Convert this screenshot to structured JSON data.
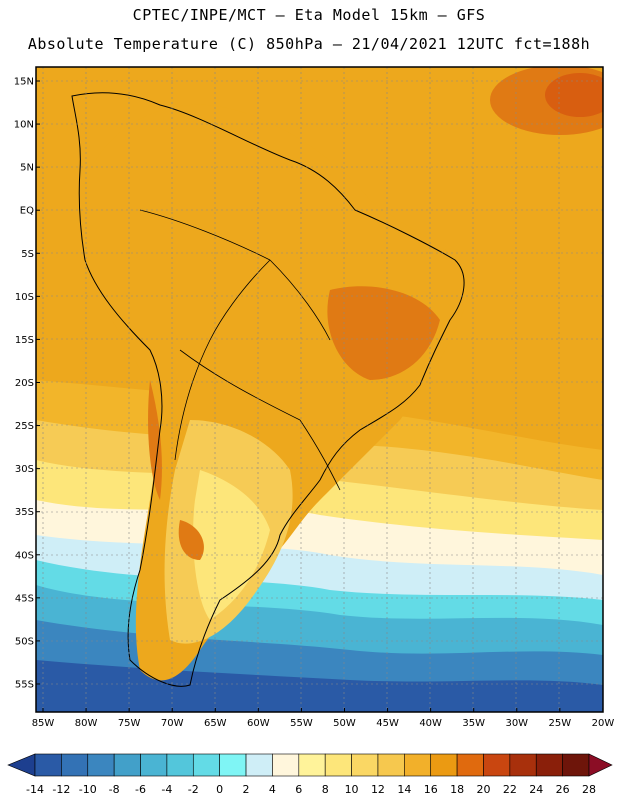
{
  "header": {
    "line1": "CPTEC/INPE/MCT –  Eta Model 15km – GFS",
    "line2": "Absolute Temperature (C) 850hPa – 21/04/2021 12UTC fct=188h"
  },
  "map": {
    "lat_labels": [
      "15N",
      "10N",
      "5N",
      "EQ",
      "5S",
      "10S",
      "15S",
      "20S",
      "25S",
      "30S",
      "35S",
      "40S",
      "45S",
      "50S",
      "55S"
    ],
    "lon_labels": [
      "85W",
      "80W",
      "75W",
      "70W",
      "65W",
      "60W",
      "55W",
      "50W",
      "45W",
      "40W",
      "35W",
      "30W",
      "25W",
      "20W"
    ]
  },
  "colorbar": {
    "labels": [
      "-14",
      "-12",
      "-10",
      "-8",
      "-6",
      "-4",
      "-2",
      "0",
      "2",
      "4",
      "6",
      "8",
      "10",
      "12",
      "14",
      "16",
      "18",
      "20",
      "22",
      "24",
      "26",
      "28"
    ],
    "colors": [
      "#1d3f8f",
      "#2a5aa6",
      "#3372b5",
      "#3b86bf",
      "#42a0c9",
      "#4ab4d3",
      "#53c6db",
      "#63dbe6",
      "#7ff5f5",
      "#cfeef7",
      "#fff6dc",
      "#fff39a",
      "#fde67a",
      "#fad764",
      "#f6c84e",
      "#f2b02a",
      "#eb9a12",
      "#e06a0e",
      "#c94610",
      "#a8300c",
      "#8a1f0a",
      "#6e150a",
      "#8b0d25"
    ]
  }
}
